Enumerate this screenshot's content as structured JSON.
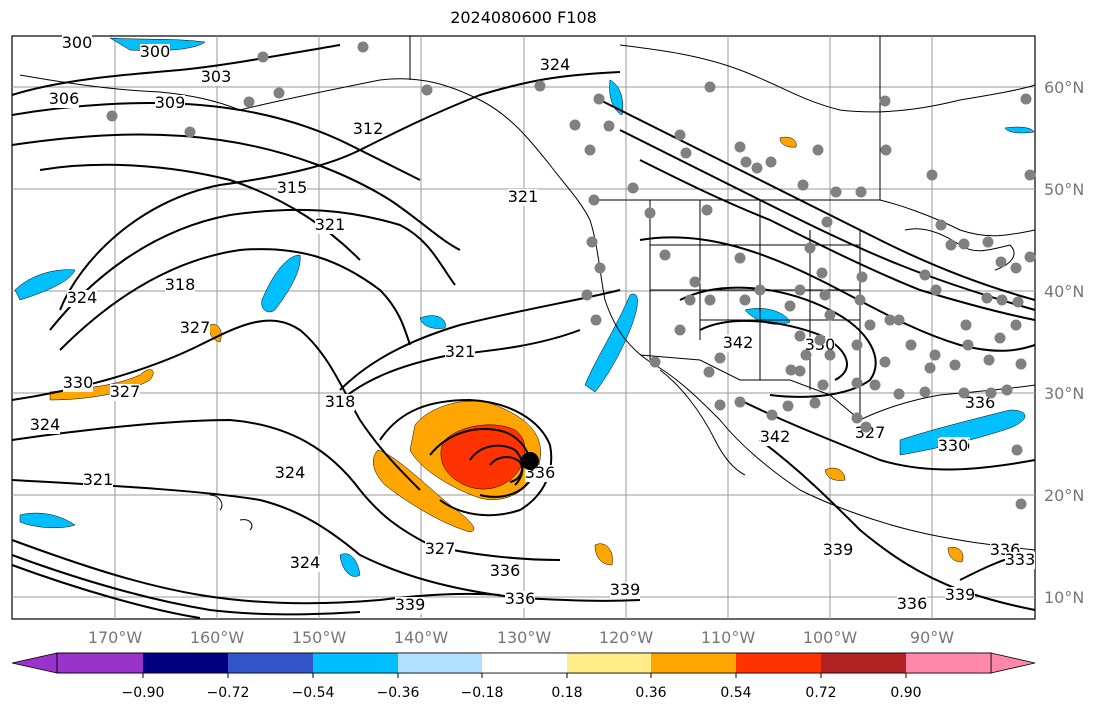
{
  "title": "2024080600 F108",
  "lat_labels": [
    "60°N",
    "50°N",
    "40°N",
    "30°N",
    "20°N",
    "10°N"
  ],
  "lon_labels": [
    "170°W",
    "160°W",
    "150°W",
    "140°W",
    "130°W",
    "120°W",
    "110°W",
    "100°W",
    "90°W"
  ],
  "contour_labels": [
    "300",
    "300",
    "303",
    "306",
    "309",
    "312",
    "315",
    "321",
    "318",
    "324",
    "327",
    "330",
    "327",
    "324",
    "321",
    "318",
    "321",
    "324",
    "324",
    "321",
    "324",
    "327",
    "330",
    "336",
    "339",
    "336",
    "339",
    "336",
    "339",
    "336",
    "342",
    "342",
    "336",
    "327",
    "330",
    "336",
    "339",
    "336",
    "333"
  ],
  "colorbar": {
    "ticks": [
      "−0.90",
      "−0.72",
      "−0.54",
      "−0.36",
      "−0.18",
      "0.18",
      "0.36",
      "0.54",
      "0.72",
      "0.90"
    ],
    "colors": [
      "#9933cc",
      "#000080",
      "#3355cc",
      "#00bfff",
      "#b0e0ff",
      "#ffffff",
      "#ffee88",
      "#ffa500",
      "#ff3300",
      "#b22222",
      "#ff88aa"
    ]
  },
  "colors": {
    "land_line": "#000000",
    "grid": "#999999",
    "station_dot": "#808080",
    "negative": "#00bfff",
    "positive": "#ffa500",
    "strong_positive": "#ff3300"
  }
}
